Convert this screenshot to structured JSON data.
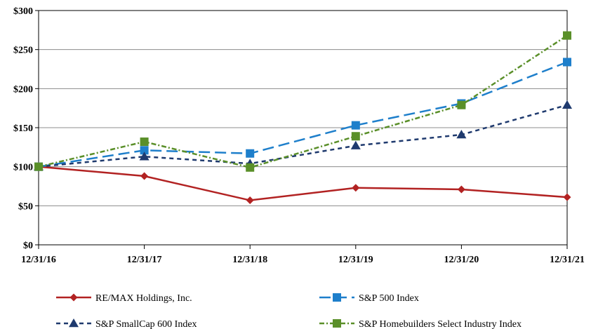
{
  "chart_data": {
    "type": "line",
    "title": "",
    "xlabel": "",
    "ylabel": "",
    "categories": [
      "12/31/16",
      "12/31/17",
      "12/31/18",
      "12/31/19",
      "12/31/20",
      "12/31/21"
    ],
    "ylim": [
      0,
      300
    ],
    "yticks": [
      0,
      50,
      100,
      150,
      200,
      250,
      300
    ],
    "ytick_labels": [
      "$0",
      "$50",
      "$100",
      "$150",
      "$200",
      "$250",
      "$300"
    ],
    "grid": "horizontal",
    "legend_position": "bottom",
    "series": [
      {
        "name": "RE/MAX Holdings, Inc.",
        "values": [
          100,
          88,
          57,
          73,
          71,
          61
        ],
        "color": "#B22222",
        "dash": "solid",
        "marker": "diamond"
      },
      {
        "name": "S&P 500 Index",
        "values": [
          100,
          121,
          117,
          153,
          181,
          234
        ],
        "color": "#1E7FCB",
        "dash": "long-dash",
        "marker": "square"
      },
      {
        "name": "S&P SmallCap 600 Index",
        "values": [
          100,
          113,
          104,
          127,
          141,
          179
        ],
        "color": "#1F3A6E",
        "dash": "short-dash",
        "marker": "triangle"
      },
      {
        "name": "S&P Homebuilders Select Industry Index",
        "values": [
          100,
          132,
          99,
          139,
          179,
          268
        ],
        "color": "#5A8F29",
        "dash": "dotted-dash",
        "marker": "square"
      }
    ]
  }
}
